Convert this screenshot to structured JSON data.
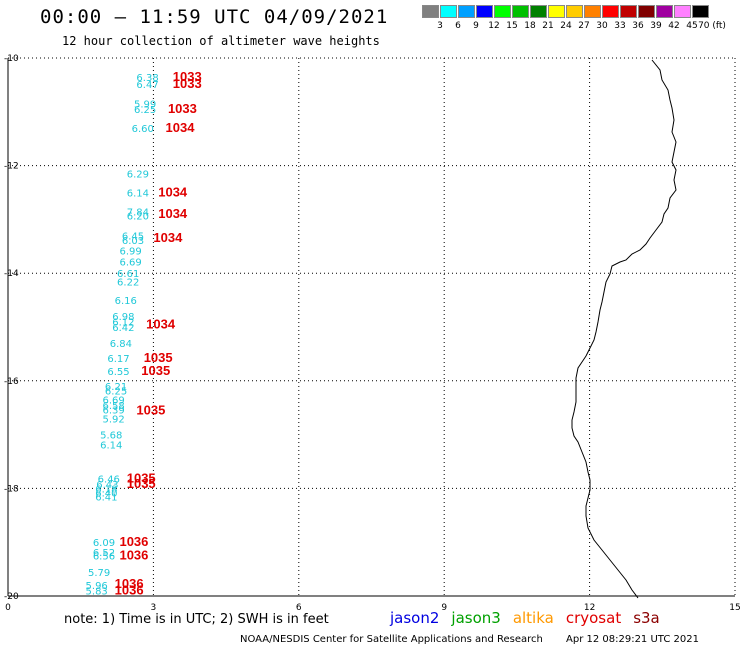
{
  "title": "00:00 — 11:59 UTC 04/09/2021",
  "subtitle": "12 hour collection of altimeter wave heights",
  "color_scale": {
    "labels": [
      "3",
      "6",
      "9",
      "12",
      "15",
      "18",
      "21",
      "24",
      "27",
      "30",
      "33",
      "36",
      "39",
      "42",
      "45",
      "70 (ft)"
    ],
    "colors": [
      "#808080",
      "#00ffff",
      "#00a0ff",
      "#0000ff",
      "#00ff00",
      "#00c000",
      "#008000",
      "#ffff00",
      "#ffcc00",
      "#ff8000",
      "#ff0000",
      "#c00000",
      "#800000",
      "#a000a0",
      "#ff80ff",
      "#000000"
    ]
  },
  "map": {
    "lat_labels": [
      "-10",
      "-12",
      "-14",
      "-16",
      "-18",
      "-20"
    ],
    "lon_labels": [
      "0",
      "3",
      "6",
      "9",
      "12",
      "15"
    ],
    "coastline_description": "coastline"
  },
  "wave_labels": [
    {
      "text": "6.38",
      "lon": 2.65,
      "lat": -10.35,
      "color": "#20c8d8"
    },
    {
      "text": "6.47",
      "lon": 2.65,
      "lat": -10.48,
      "color": "#20c8d8"
    },
    {
      "text": "5.99",
      "lon": 2.6,
      "lat": -10.85,
      "color": "#20c8d8"
    },
    {
      "text": "6.25",
      "lon": 2.6,
      "lat": -10.95,
      "color": "#20c8d8"
    },
    {
      "text": "6.60",
      "lon": 2.55,
      "lat": -11.3,
      "color": "#20c8d8"
    },
    {
      "text": "6.29",
      "lon": 2.45,
      "lat": -12.15,
      "color": "#20c8d8"
    },
    {
      "text": "6.14",
      "lon": 2.45,
      "lat": -12.5,
      "color": "#20c8d8"
    },
    {
      "text": "7.84",
      "lon": 2.45,
      "lat": -12.85,
      "color": "#20c8d8"
    },
    {
      "text": "6.20",
      "lon": 2.45,
      "lat": -12.93,
      "color": "#20c8d8"
    },
    {
      "text": "6.45",
      "lon": 2.35,
      "lat": -13.3,
      "color": "#20c8d8"
    },
    {
      "text": "6.03",
      "lon": 2.35,
      "lat": -13.38,
      "color": "#20c8d8"
    },
    {
      "text": "6.99",
      "lon": 2.3,
      "lat": -13.58,
      "color": "#20c8d8"
    },
    {
      "text": "6.69",
      "lon": 2.3,
      "lat": -13.78,
      "color": "#20c8d8"
    },
    {
      "text": "6.61",
      "lon": 2.25,
      "lat": -14.0,
      "color": "#20c8d8"
    },
    {
      "text": "6.22",
      "lon": 2.25,
      "lat": -14.15,
      "color": "#20c8d8"
    },
    {
      "text": "6.16",
      "lon": 2.2,
      "lat": -14.5,
      "color": "#20c8d8"
    },
    {
      "text": "6.98",
      "lon": 2.15,
      "lat": -14.8,
      "color": "#20c8d8"
    },
    {
      "text": "6.12",
      "lon": 2.15,
      "lat": -14.9,
      "color": "#20c8d8"
    },
    {
      "text": "6.42",
      "lon": 2.15,
      "lat": -15.0,
      "color": "#20c8d8"
    },
    {
      "text": "6.84",
      "lon": 2.1,
      "lat": -15.3,
      "color": "#20c8d8"
    },
    {
      "text": "6.17",
      "lon": 2.05,
      "lat": -15.58,
      "color": "#20c8d8"
    },
    {
      "text": "6.55",
      "lon": 2.05,
      "lat": -15.82,
      "color": "#20c8d8"
    },
    {
      "text": "6.21",
      "lon": 2.0,
      "lat": -16.1,
      "color": "#20c8d8"
    },
    {
      "text": "6.25",
      "lon": 2.0,
      "lat": -16.18,
      "color": "#20c8d8"
    },
    {
      "text": "6.69",
      "lon": 1.95,
      "lat": -16.35,
      "color": "#20c8d8"
    },
    {
      "text": "6.58",
      "lon": 1.95,
      "lat": -16.45,
      "color": "#20c8d8"
    },
    {
      "text": "6.39",
      "lon": 1.95,
      "lat": -16.53,
      "color": "#20c8d8"
    },
    {
      "text": "5.92",
      "lon": 1.95,
      "lat": -16.7,
      "color": "#20c8d8"
    },
    {
      "text": "5.68",
      "lon": 1.9,
      "lat": -17.0,
      "color": "#20c8d8"
    },
    {
      "text": "6.14",
      "lon": 1.9,
      "lat": -17.18,
      "color": "#20c8d8"
    },
    {
      "text": "6.46",
      "lon": 1.85,
      "lat": -17.82,
      "color": "#20c8d8"
    },
    {
      "text": "6.43",
      "lon": 1.82,
      "lat": -17.92,
      "color": "#20c8d8"
    },
    {
      "text": "6.18",
      "lon": 1.8,
      "lat": -18.0,
      "color": "#20c8d8"
    },
    {
      "text": "6.40",
      "lon": 1.8,
      "lat": -18.08,
      "color": "#20c8d8"
    },
    {
      "text": "6.41",
      "lon": 1.8,
      "lat": -18.15,
      "color": "#20c8d8"
    },
    {
      "text": "6.09",
      "lon": 1.75,
      "lat": -19.0,
      "color": "#20c8d8"
    },
    {
      "text": "6.52",
      "lon": 1.75,
      "lat": -19.18,
      "color": "#20c8d8"
    },
    {
      "text": "6.56",
      "lon": 1.75,
      "lat": -19.25,
      "color": "#20c8d8"
    },
    {
      "text": "5.79",
      "lon": 1.65,
      "lat": -19.55,
      "color": "#20c8d8"
    },
    {
      "text": "5.96",
      "lon": 1.6,
      "lat": -19.8,
      "color": "#20c8d8"
    },
    {
      "text": "5.83",
      "lon": 1.6,
      "lat": -19.9,
      "color": "#20c8d8"
    },
    {
      "text": "1033",
      "lon": 3.4,
      "lat": -10.35,
      "color": "#e00000"
    },
    {
      "text": "1033",
      "lon": 3.4,
      "lat": -10.48,
      "color": "#e00000"
    },
    {
      "text": "1033",
      "lon": 3.3,
      "lat": -10.95,
      "color": "#e00000"
    },
    {
      "text": "1034",
      "lon": 3.25,
      "lat": -11.3,
      "color": "#e00000"
    },
    {
      "text": "1034",
      "lon": 3.1,
      "lat": -12.5,
      "color": "#e00000"
    },
    {
      "text": "1034",
      "lon": 3.1,
      "lat": -12.9,
      "color": "#e00000"
    },
    {
      "text": "1034",
      "lon": 3.0,
      "lat": -13.35,
      "color": "#e00000"
    },
    {
      "text": "1034",
      "lon": 2.85,
      "lat": -14.95,
      "color": "#e00000"
    },
    {
      "text": "1035",
      "lon": 2.8,
      "lat": -15.58,
      "color": "#e00000"
    },
    {
      "text": "1035",
      "lon": 2.75,
      "lat": -15.82,
      "color": "#e00000"
    },
    {
      "text": "1035",
      "lon": 2.65,
      "lat": -16.55,
      "color": "#e00000"
    },
    {
      "text": "1035",
      "lon": 2.45,
      "lat": -17.82,
      "color": "#e00000"
    },
    {
      "text": "1035",
      "lon": 2.45,
      "lat": -17.92,
      "color": "#e00000"
    },
    {
      "text": "1036",
      "lon": 2.3,
      "lat": -19.0,
      "color": "#e00000"
    },
    {
      "text": "1036",
      "lon": 2.3,
      "lat": -19.25,
      "color": "#e00000"
    },
    {
      "text": "1036",
      "lon": 2.2,
      "lat": -19.78,
      "color": "#e00000"
    },
    {
      "text": "1036",
      "lon": 2.2,
      "lat": -19.9,
      "color": "#e00000"
    }
  ],
  "footer": {
    "note": "note: 1) Time is in UTC; 2) SWH is in feet",
    "missions": [
      {
        "label": "jason2",
        "color": "#0000e0"
      },
      {
        "label": "jason3",
        "color": "#00a000"
      },
      {
        "label": "altika",
        "color": "#ff9900"
      },
      {
        "label": "cryosat",
        "color": "#e00000"
      },
      {
        "label": "s3a",
        "color": "#8b0000"
      }
    ],
    "credit": "NOAA/NESDIS Center for Satellite Applications and Research",
    "timestamp": "Apr 12 08:29:21 UTC 2021"
  }
}
